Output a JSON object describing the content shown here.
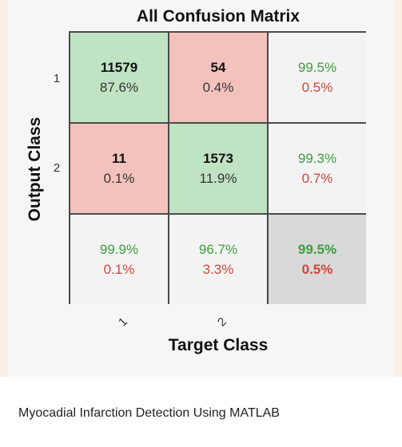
{
  "chart_data": {
    "type": "table",
    "title": "All Confusion Matrix",
    "xlabel": "Target Class",
    "ylabel": "Output Class",
    "row_labels": [
      "1",
      "2"
    ],
    "col_labels": [
      "1",
      "2"
    ],
    "colors": {
      "correct_cell": "#c0e3c4",
      "error_cell": "#f4c2bd",
      "summary_cell": "#f3f3f3",
      "overall_cell": "#d9d9d9",
      "good_text": "#3f9b3f",
      "bad_text": "#d0453c"
    },
    "cells": [
      [
        {
          "count": "11579",
          "pct": "87.6%",
          "kind": "correct"
        },
        {
          "count": "54",
          "pct": "0.4%",
          "kind": "error"
        },
        {
          "good": "99.5%",
          "bad": "0.5%",
          "kind": "summary"
        }
      ],
      [
        {
          "count": "11",
          "pct": "0.1%",
          "kind": "error"
        },
        {
          "count": "1573",
          "pct": "11.9%",
          "kind": "correct"
        },
        {
          "good": "99.3%",
          "bad": "0.7%",
          "kind": "summary"
        }
      ],
      [
        {
          "good": "99.9%",
          "bad": "0.1%",
          "kind": "summary"
        },
        {
          "good": "96.7%",
          "bad": "3.3%",
          "kind": "summary"
        },
        {
          "good": "99.5%",
          "bad": "0.5%",
          "kind": "overall"
        }
      ]
    ]
  },
  "caption": "Myocadial Infarction Detection Using MATLAB"
}
